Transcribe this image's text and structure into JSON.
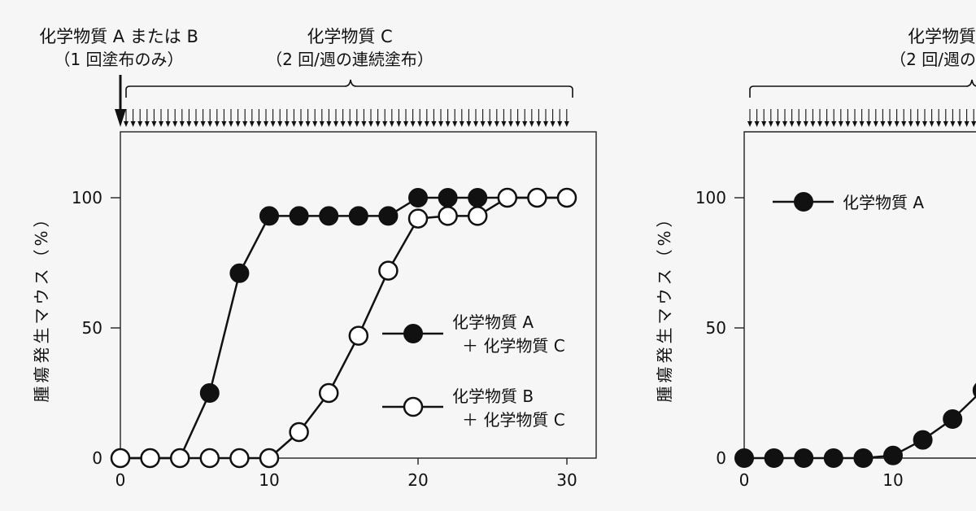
{
  "annotations": {
    "single_label_line1": "化学物質 A または B",
    "single_label_line2": "（1 回塗布のみ）",
    "cont_label_line1": "化学物質 C",
    "cont_label_line2": "（2 回/週の連続塗布）",
    "right_cont_label_line1": "化学物質",
    "right_cont_label_line2": "（2 回/週の"
  },
  "chart_data": [
    {
      "type": "line",
      "ylabel": "腫瘍発生マウス（%）",
      "xlim": [
        0,
        30
      ],
      "ylim": [
        0,
        100
      ],
      "x_ticks": [
        0,
        10,
        20,
        30
      ],
      "y_ticks": [
        0,
        50,
        100
      ],
      "legend_position": "right",
      "series": [
        {
          "name_line1": "化学物質 A",
          "name_line2": "＋ 化学物質 C",
          "marker": "filled",
          "x": [
            0,
            2,
            4,
            6,
            8,
            10,
            12,
            14,
            16,
            18,
            20,
            22,
            24,
            26,
            28,
            30
          ],
          "values": [
            0,
            0,
            0,
            25,
            71,
            93,
            93,
            93,
            93,
            93,
            100,
            100,
            100,
            100,
            100,
            100
          ]
        },
        {
          "name_line1": "化学物質 B",
          "name_line2": "＋ 化学物質 C",
          "marker": "open",
          "x": [
            0,
            2,
            4,
            6,
            8,
            10,
            12,
            14,
            16,
            18,
            20,
            22,
            24,
            26,
            28,
            30
          ],
          "values": [
            0,
            0,
            0,
            0,
            0,
            0,
            10,
            25,
            47,
            72,
            92,
            93,
            93,
            100,
            100,
            100
          ]
        }
      ]
    },
    {
      "type": "line",
      "ylabel": "腫瘍発生マウス（%）",
      "xlim": [
        0,
        30
      ],
      "ylim": [
        0,
        100
      ],
      "x_ticks": [
        0,
        10
      ],
      "y_ticks": [
        0,
        50,
        100
      ],
      "legend_position": "top-left",
      "series": [
        {
          "name": "化学物質 A",
          "marker": "filled",
          "x": [
            0,
            2,
            4,
            6,
            8,
            10,
            12,
            14,
            16
          ],
          "values": [
            0,
            0,
            0,
            0,
            0,
            1,
            7,
            15,
            26
          ]
        }
      ]
    }
  ]
}
